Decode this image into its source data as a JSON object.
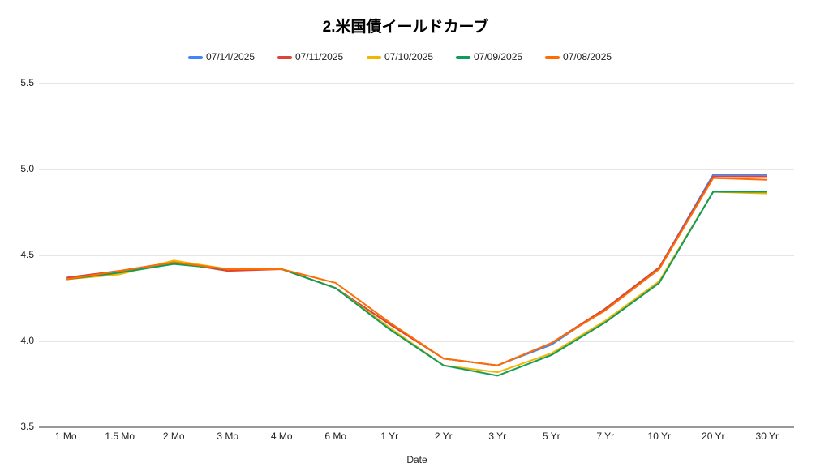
{
  "chart_data": {
    "type": "line",
    "title": "2.米国債イールドカーブ",
    "x_label": "Date",
    "categories": [
      "1 Mo",
      "1.5 Mo",
      "2 Mo",
      "3 Mo",
      "4 Mo",
      "6 Mo",
      "1 Yr",
      "2 Yr",
      "3 Yr",
      "5 Yr",
      "7 Yr",
      "10 Yr",
      "20 Yr",
      "30 Yr"
    ],
    "series": [
      {
        "name": "07/14/2025",
        "color": "#4285f4",
        "values": [
          4.37,
          4.41,
          4.46,
          4.42,
          4.42,
          4.31,
          4.1,
          3.9,
          3.86,
          3.98,
          4.19,
          4.43,
          4.97,
          4.97
        ]
      },
      {
        "name": "07/11/2025",
        "color": "#db4437",
        "values": [
          4.37,
          4.41,
          4.46,
          4.41,
          4.42,
          4.31,
          4.1,
          3.9,
          3.86,
          3.99,
          4.19,
          4.43,
          4.96,
          4.96
        ]
      },
      {
        "name": "07/10/2025",
        "color": "#f4b400",
        "values": [
          4.36,
          4.39,
          4.47,
          4.42,
          4.42,
          4.31,
          4.08,
          3.86,
          3.82,
          3.93,
          4.12,
          4.35,
          4.87,
          4.86
        ]
      },
      {
        "name": "07/09/2025",
        "color": "#0f9d58",
        "values": [
          4.36,
          4.4,
          4.45,
          4.42,
          4.42,
          4.31,
          4.07,
          3.86,
          3.8,
          3.92,
          4.11,
          4.34,
          4.87,
          4.87
        ]
      },
      {
        "name": "07/08/2025",
        "color": "#ff6d01",
        "values": [
          4.36,
          4.41,
          4.46,
          4.42,
          4.42,
          4.34,
          4.11,
          3.9,
          3.86,
          3.99,
          4.18,
          4.42,
          4.95,
          4.94
        ]
      }
    ],
    "ylim": [
      3.5,
      5.5
    ],
    "yticks": [
      3.5,
      {
        "value": 4,
        "label": "4.0"
      },
      4.5,
      {
        "value": 5,
        "label": "5.0"
      },
      5.5
    ],
    "grid": true,
    "legend": "top"
  }
}
